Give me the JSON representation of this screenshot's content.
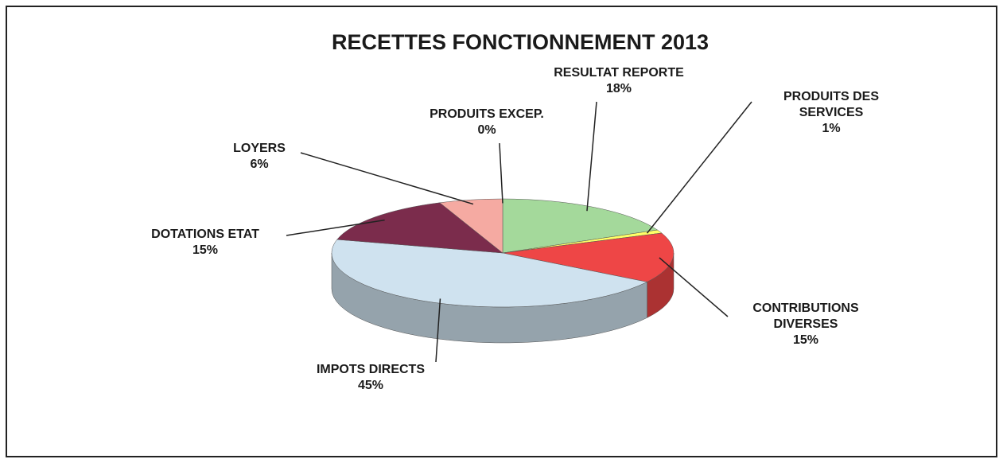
{
  "chart_data": {
    "type": "pie",
    "title": "RECETTES FONCTIONNEMENT 2013",
    "categories": [
      "PRODUITS EXCEP.",
      "RESULTAT REPORTE",
      "PRODUITS DES SERVICES",
      "CONTRIBUTIONS DIVERSES",
      "IMPOTS DIRECTS",
      "DOTATIONS ETAT",
      "LOYERS"
    ],
    "values": [
      0,
      18,
      1,
      15,
      45,
      15,
      6
    ],
    "value_labels": [
      "0%",
      "18%",
      "1%",
      "15%",
      "45%",
      "15%",
      "6%"
    ],
    "colors": [
      "#9999ff",
      "#a4d99b",
      "#ffff66",
      "#ee4646",
      "#cfe2ef",
      "#7b2c4c",
      "#f5aaa2"
    ]
  }
}
